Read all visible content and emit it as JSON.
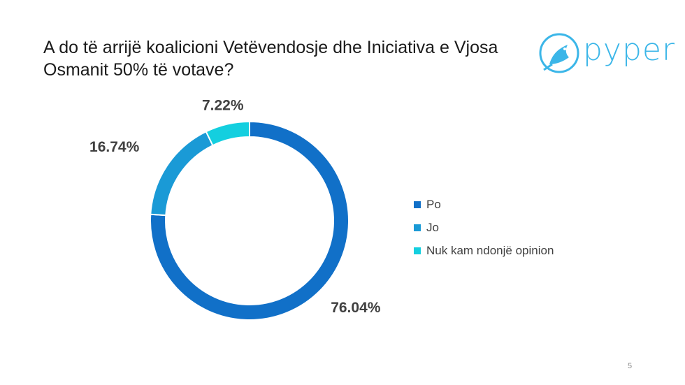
{
  "slide": {
    "title": "A do të arrijë koalicioni Vetëvendosje dhe Iniciativa e Vjosa Osmanit 50% të votave?",
    "page_number": "5"
  },
  "logo": {
    "text": "pyper",
    "color": "#3bb6e8"
  },
  "chart_data": {
    "type": "pie",
    "style": "donut",
    "title": "",
    "categories": [
      "Po",
      "Jo",
      "Nuk kam ndonjë opinion"
    ],
    "values": [
      76.04,
      16.74,
      7.22
    ],
    "labels": [
      "76.04%",
      "16.74%",
      "7.22%"
    ],
    "colors": [
      "#1170c8",
      "#1a9ad6",
      "#14cfdf"
    ],
    "legend_position": "right"
  }
}
